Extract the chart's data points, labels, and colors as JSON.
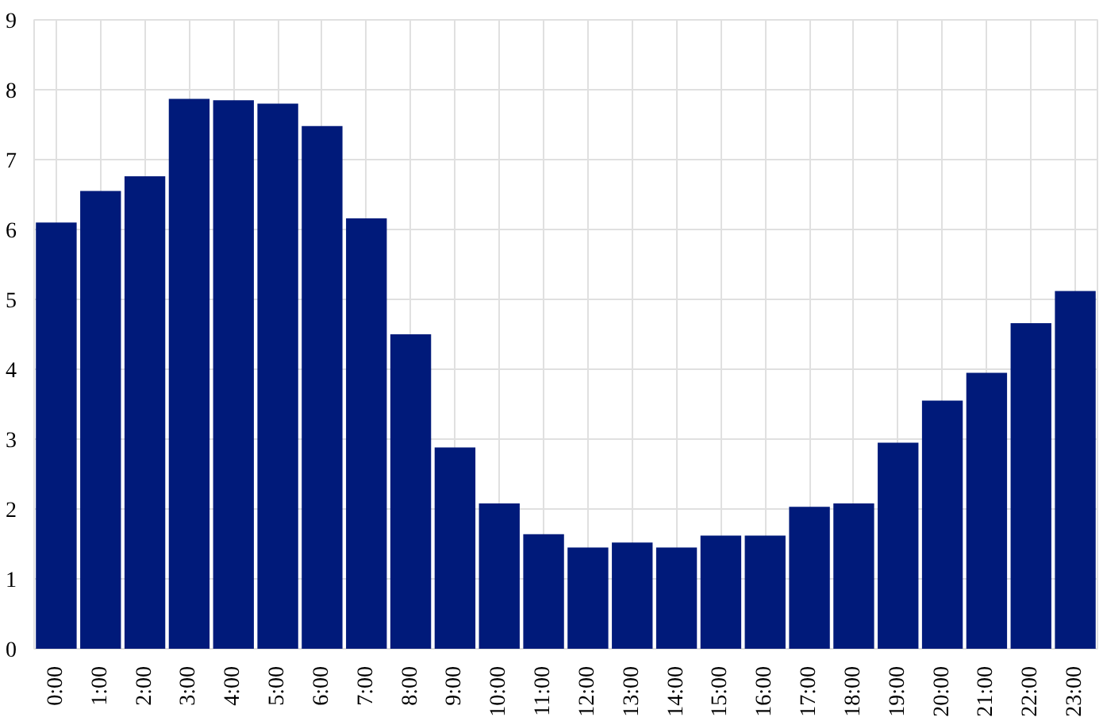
{
  "chart_data": {
    "type": "bar",
    "categories": [
      "0:00",
      "1:00",
      "2:00",
      "3:00",
      "4:00",
      "5:00",
      "6:00",
      "7:00",
      "8:00",
      "9:00",
      "10:00",
      "11:00",
      "12:00",
      "13:00",
      "14:00",
      "15:00",
      "16:00",
      "17:00",
      "18:00",
      "19:00",
      "20:00",
      "21:00",
      "22:00",
      "23:00"
    ],
    "values": [
      6.1,
      6.55,
      6.76,
      7.87,
      7.85,
      7.8,
      7.48,
      6.16,
      4.5,
      2.88,
      2.08,
      1.64,
      1.45,
      1.52,
      1.45,
      1.62,
      1.62,
      2.03,
      2.08,
      2.95,
      3.55,
      3.95,
      4.66,
      5.12
    ],
    "color": "#001a7a",
    "ylim": [
      0,
      9
    ],
    "yticks": [
      0,
      1,
      2,
      3,
      4,
      5,
      6,
      7,
      8,
      9
    ],
    "grid": true
  }
}
